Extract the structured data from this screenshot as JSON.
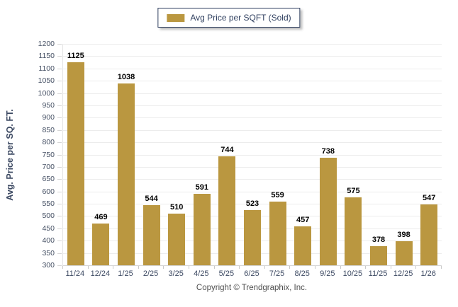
{
  "page": {
    "footer": "Copyright © Trendgraphix, Inc."
  },
  "legend": {
    "label": "Avg Price per SQFT (Sold)"
  },
  "colors": {
    "bar": "#ba9740",
    "axis_text": "#3d4a63",
    "value_label": "#000000",
    "grid": "#ececec",
    "legend_border": "#2f3f5f",
    "footer_text": "#4f4f4f"
  },
  "chart_data": {
    "type": "bar",
    "title": "Avg Price per SQFT (Sold)",
    "categories": [
      "11/24",
      "12/24",
      "1/25",
      "2/25",
      "3/25",
      "4/25",
      "5/25",
      "6/25",
      "7/25",
      "8/25",
      "9/25",
      "10/25",
      "11/25",
      "12/25",
      "1/26"
    ],
    "values": [
      1125,
      469,
      1038,
      544,
      510,
      591,
      744,
      523,
      559,
      457,
      738,
      575,
      378,
      398,
      547
    ],
    "xlabel": "",
    "ylabel": "Avg. Price per SQ. FT.",
    "ylim": [
      300,
      1200
    ],
    "ytick_step": 50,
    "grid": true,
    "legend_position": "top-center",
    "value_labels": true,
    "bar_color": "#ba9740"
  }
}
